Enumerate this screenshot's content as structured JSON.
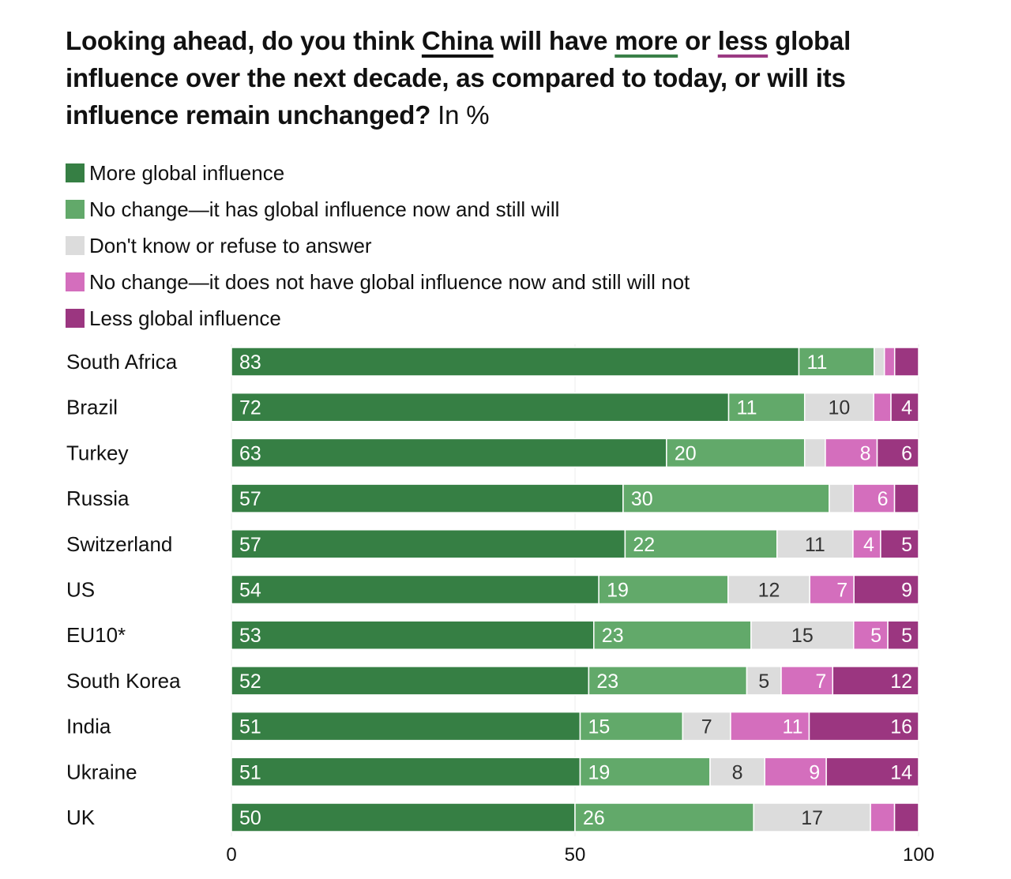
{
  "chart_data": {
    "type": "bar",
    "orientation": "horizontal",
    "stacked": true,
    "title": {
      "part1": "Looking ahead, do you think ",
      "china": "China",
      "part2": " will have ",
      "more": "more",
      "part3": " or ",
      "less": "less",
      "part4": " global influence over the next decade, as compared to today, or will its influence remain unchanged?",
      "unit": " In %"
    },
    "categories": [
      "South Africa",
      "Brazil",
      "Turkey",
      "Russia",
      "Switzerland",
      "US",
      "EU10*",
      "South Korea",
      "India",
      "Ukraine",
      "UK"
    ],
    "series": [
      {
        "name": "More global influence",
        "color": "#367f44",
        "label_color": "#ffffff",
        "values": [
          83,
          72,
          63,
          57,
          57,
          54,
          53,
          52,
          51,
          51,
          50
        ],
        "labels": [
          "83",
          "72",
          "63",
          "57",
          "57",
          "54",
          "53",
          "52",
          "51",
          "51",
          "50"
        ]
      },
      {
        "name": "No change—it has global influence now and still will",
        "color": "#62a96a",
        "label_color": "#ffffff",
        "values": [
          11,
          11,
          20,
          30,
          22,
          19,
          23,
          23,
          15,
          19,
          26
        ],
        "labels": [
          "11",
          "11",
          "20",
          "30",
          "22",
          "19",
          "23",
          "23",
          "15",
          "19",
          "26"
        ]
      },
      {
        "name": "Don't know or refuse to answer",
        "color": "#dcdcdc",
        "label_color": "#333333",
        "values": [
          1.5,
          10,
          3,
          3.5,
          11,
          12,
          15,
          5,
          7,
          8,
          17
        ],
        "labels": [
          "",
          "10",
          "",
          "",
          "11",
          "12",
          "15",
          "5",
          "7",
          "8",
          "17"
        ]
      },
      {
        "name": "No change—it does not have global influence now and still will not",
        "color": "#d46ebd",
        "label_color": "#ffffff",
        "values": [
          1.5,
          2.5,
          7.5,
          6,
          4,
          6.5,
          5,
          7.5,
          11.5,
          9,
          3.5
        ],
        "labels": [
          "",
          "",
          "8",
          "6",
          "4",
          "7",
          "5",
          "7",
          "11",
          "9",
          ""
        ]
      },
      {
        "name": "Less global influence",
        "color": "#9b3680",
        "label_color": "#ffffff",
        "values": [
          3.5,
          4,
          6,
          3.5,
          5.5,
          9.5,
          4.5,
          12.5,
          16,
          13.5,
          3.5
        ],
        "labels": [
          "",
          "4",
          "6",
          "",
          "5",
          "9",
          "5",
          "12",
          "16",
          "14",
          ""
        ]
      }
    ],
    "xlim": [
      0,
      100
    ],
    "x_ticks": [
      0,
      50,
      100
    ],
    "x_tick_labels": [
      "0",
      "50",
      "100"
    ],
    "grid": true,
    "legend_position": "top-left"
  }
}
